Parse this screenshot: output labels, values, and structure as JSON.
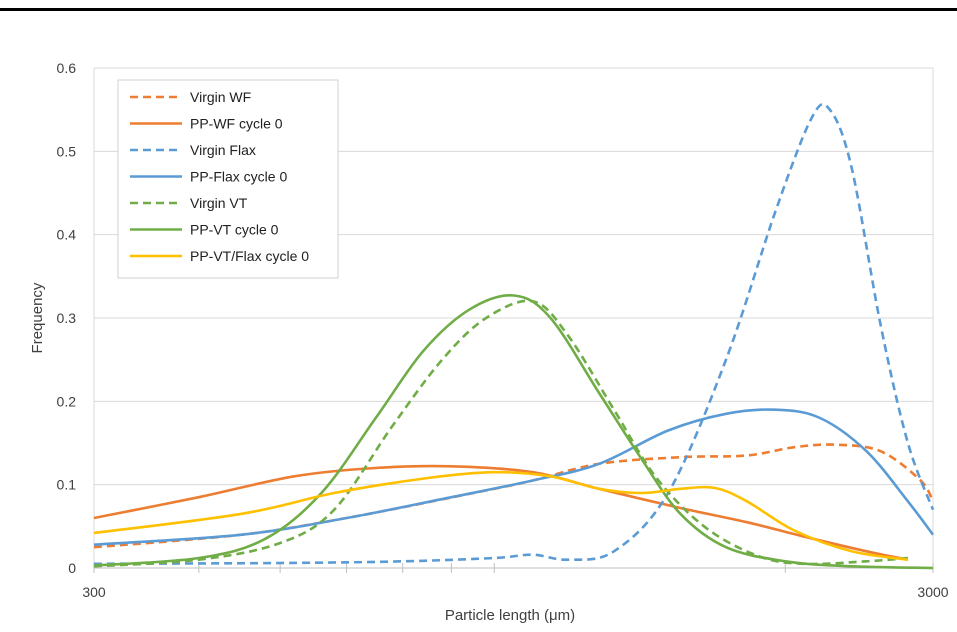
{
  "chart_data": {
    "type": "line",
    "xscale": "log",
    "xlabel": "Particle length (μm)",
    "ylabel": "Frequency",
    "xlim": [
      300,
      3000
    ],
    "ylim": [
      0,
      0.6
    ],
    "x_ticks": [
      300,
      3000
    ],
    "y_ticks": [
      0,
      0.1,
      0.2,
      0.3,
      0.4,
      0.5,
      0.6
    ],
    "grid": "horizontal",
    "legend_position": "top-left",
    "series": [
      {
        "name": "Virgin WF",
        "color": "#ED7D31",
        "style": "dashed",
        "points": [
          [
            300,
            0.025
          ],
          [
            450,
            0.04
          ],
          [
            600,
            0.06
          ],
          [
            850,
            0.09
          ],
          [
            1000,
            0.105
          ],
          [
            1200,
            0.125
          ],
          [
            1500,
            0.133
          ],
          [
            1800,
            0.135
          ],
          [
            2050,
            0.145
          ],
          [
            2300,
            0.148
          ],
          [
            2600,
            0.14
          ],
          [
            2900,
            0.105
          ],
          [
            3000,
            0.08
          ]
        ]
      },
      {
        "name": "PP-WF cycle 0",
        "color": "#ED7D31",
        "style": "solid",
        "points": [
          [
            300,
            0.06
          ],
          [
            400,
            0.085
          ],
          [
            520,
            0.11
          ],
          [
            650,
            0.12
          ],
          [
            800,
            0.122
          ],
          [
            1000,
            0.115
          ],
          [
            1200,
            0.095
          ],
          [
            1500,
            0.072
          ],
          [
            1800,
            0.055
          ],
          [
            2100,
            0.038
          ],
          [
            2500,
            0.02
          ],
          [
            2800,
            0.01
          ]
        ]
      },
      {
        "name": "Virgin Flax",
        "color": "#5B9BD5",
        "style": "dashed",
        "points": [
          [
            300,
            0.005
          ],
          [
            500,
            0.006
          ],
          [
            700,
            0.008
          ],
          [
            900,
            0.012
          ],
          [
            1000,
            0.016
          ],
          [
            1100,
            0.01
          ],
          [
            1250,
            0.02
          ],
          [
            1450,
            0.09
          ],
          [
            1700,
            0.25
          ],
          [
            1950,
            0.43
          ],
          [
            2150,
            0.54
          ],
          [
            2260,
            0.55
          ],
          [
            2400,
            0.48
          ],
          [
            2600,
            0.29
          ],
          [
            2800,
            0.15
          ],
          [
            3000,
            0.07
          ]
        ]
      },
      {
        "name": "PP-Flax cycle 0",
        "color": "#5B9BD5",
        "style": "solid",
        "points": [
          [
            300,
            0.028
          ],
          [
            450,
            0.04
          ],
          [
            600,
            0.06
          ],
          [
            800,
            0.085
          ],
          [
            1000,
            0.105
          ],
          [
            1200,
            0.125
          ],
          [
            1450,
            0.165
          ],
          [
            1700,
            0.185
          ],
          [
            1950,
            0.19
          ],
          [
            2200,
            0.18
          ],
          [
            2500,
            0.14
          ],
          [
            2800,
            0.08
          ],
          [
            3000,
            0.04
          ]
        ]
      },
      {
        "name": "Virgin VT",
        "color": "#70AD47",
        "style": "dashed",
        "points": [
          [
            300,
            0.002
          ],
          [
            400,
            0.01
          ],
          [
            500,
            0.03
          ],
          [
            580,
            0.07
          ],
          [
            680,
            0.17
          ],
          [
            780,
            0.25
          ],
          [
            880,
            0.3
          ],
          [
            1000,
            0.32
          ],
          [
            1100,
            0.28
          ],
          [
            1250,
            0.19
          ],
          [
            1400,
            0.11
          ],
          [
            1600,
            0.05
          ],
          [
            1850,
            0.015
          ],
          [
            2100,
            0.005
          ],
          [
            2500,
            0.008
          ],
          [
            2800,
            0.012
          ]
        ]
      },
      {
        "name": "PP-VT cycle 0",
        "color": "#70AD47",
        "style": "solid",
        "points": [
          [
            300,
            0.003
          ],
          [
            400,
            0.012
          ],
          [
            480,
            0.035
          ],
          [
            560,
            0.09
          ],
          [
            650,
            0.18
          ],
          [
            740,
            0.26
          ],
          [
            840,
            0.31
          ],
          [
            950,
            0.327
          ],
          [
            1050,
            0.3
          ],
          [
            1200,
            0.21
          ],
          [
            1350,
            0.13
          ],
          [
            1500,
            0.065
          ],
          [
            1700,
            0.025
          ],
          [
            2000,
            0.008
          ],
          [
            2400,
            0.002
          ],
          [
            3000,
            0
          ]
        ]
      },
      {
        "name": "PP-VT/Flax cycle 0",
        "color": "#FFC000",
        "style": "solid",
        "points": [
          [
            300,
            0.042
          ],
          [
            450,
            0.065
          ],
          [
            580,
            0.09
          ],
          [
            750,
            0.108
          ],
          [
            900,
            0.115
          ],
          [
            1050,
            0.11
          ],
          [
            1200,
            0.095
          ],
          [
            1350,
            0.09
          ],
          [
            1500,
            0.095
          ],
          [
            1650,
            0.096
          ],
          [
            1800,
            0.08
          ],
          [
            2050,
            0.045
          ],
          [
            2400,
            0.02
          ],
          [
            2800,
            0.01
          ]
        ]
      }
    ]
  }
}
